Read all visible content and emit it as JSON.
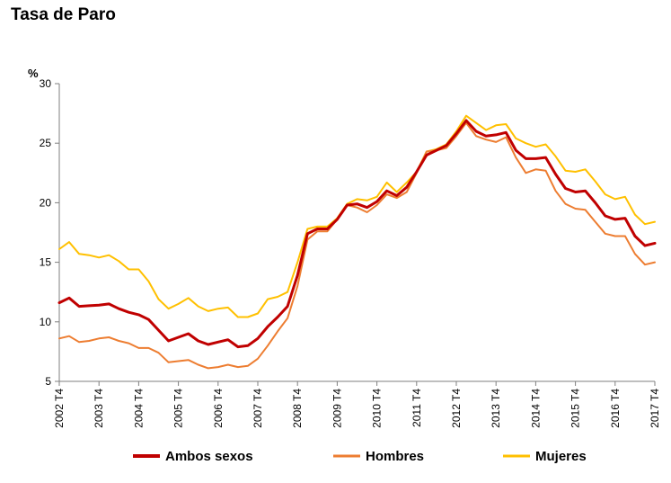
{
  "title": "Tasa de Paro",
  "chart_data": {
    "type": "line",
    "title": "Tasa de Paro",
    "ylabel": "%",
    "xlabel": "",
    "ylim": [
      5,
      30
    ],
    "yticks": [
      "5",
      "10",
      "15",
      "20",
      "25",
      "30"
    ],
    "xtick_labels": [
      "2002 T4",
      "2003 T4",
      "2004 T4",
      "2005 T4",
      "2006 T4",
      "2007 T4",
      "2008 T4",
      "2009 T4",
      "2010 T4",
      "2011 T4",
      "2012 T4",
      "2013 T4",
      "2014 T4",
      "2015 T4",
      "2016 T4",
      "2017 T4"
    ],
    "x_start": "2002 T4",
    "x_end": "2017 T4",
    "grid": false,
    "legend_position": "bottom",
    "series": [
      {
        "name": "Ambos sexos",
        "color": "#c00000",
        "values": [
          11.6,
          12.0,
          11.3,
          11.35,
          11.4,
          11.5,
          11.1,
          10.8,
          10.6,
          10.2,
          9.3,
          8.4,
          8.7,
          9.0,
          8.4,
          8.1,
          8.3,
          8.5,
          7.9,
          8.0,
          8.6,
          9.6,
          10.4,
          11.3,
          13.9,
          17.4,
          17.8,
          17.8,
          18.6,
          19.8,
          19.9,
          19.6,
          20.1,
          21.0,
          20.6,
          21.3,
          22.6,
          24.0,
          24.4,
          24.8,
          25.8,
          26.9,
          26.0,
          25.6,
          25.7,
          25.9,
          24.4,
          23.7,
          23.7,
          23.8,
          22.4,
          21.2,
          20.9,
          21.0,
          20.0,
          18.9,
          18.6,
          18.7,
          17.2,
          16.4,
          16.6
        ]
      },
      {
        "name": "Hombres",
        "color": "#ed7d31",
        "values": [
          8.6,
          8.8,
          8.3,
          8.4,
          8.6,
          8.7,
          8.4,
          8.2,
          7.8,
          7.8,
          7.4,
          6.6,
          6.7,
          6.8,
          6.4,
          6.1,
          6.2,
          6.4,
          6.2,
          6.3,
          6.9,
          8.0,
          9.2,
          10.3,
          13.0,
          16.9,
          17.6,
          17.6,
          18.6,
          19.8,
          19.6,
          19.2,
          19.8,
          20.7,
          20.4,
          20.9,
          22.5,
          24.3,
          24.4,
          24.6,
          25.6,
          26.7,
          25.6,
          25.3,
          25.1,
          25.5,
          23.8,
          22.5,
          22.8,
          22.7,
          21.0,
          19.9,
          19.5,
          19.4,
          18.4,
          17.4,
          17.2,
          17.2,
          15.7,
          14.8,
          15.0
        ]
      },
      {
        "name": "Mujeres",
        "color": "#ffc000",
        "values": [
          16.1,
          16.7,
          15.7,
          15.6,
          15.4,
          15.6,
          15.1,
          14.4,
          14.4,
          13.4,
          11.9,
          11.1,
          11.5,
          12.0,
          11.3,
          10.9,
          11.1,
          11.2,
          10.4,
          10.4,
          10.7,
          11.9,
          12.1,
          12.5,
          15.0,
          17.8,
          18.0,
          18.0,
          18.7,
          19.9,
          20.3,
          20.2,
          20.5,
          21.7,
          20.9,
          21.7,
          22.6,
          24.3,
          24.5,
          24.9,
          26.0,
          27.3,
          26.7,
          26.1,
          26.5,
          26.6,
          25.4,
          25.0,
          24.7,
          24.9,
          23.9,
          22.7,
          22.6,
          22.8,
          21.8,
          20.7,
          20.3,
          20.5,
          19.0,
          18.2,
          18.4
        ]
      }
    ]
  }
}
